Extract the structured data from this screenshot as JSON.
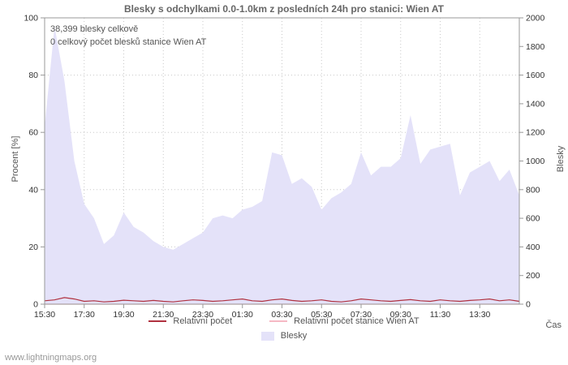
{
  "title": "Blesky s odchylkami 0.0-1.0km z posledních 24h pro stanici: Wien AT",
  "annotations": {
    "total": "38,399 blesky celkově",
    "station_total": "0 celkový počet blesků stanice Wien AT"
  },
  "footer": "www.lightningmaps.org",
  "colors": {
    "area": "#e4e2f9",
    "line_relative": "#b0313f",
    "line_station": "#f6b8c4",
    "grid": "#c8c8c8",
    "axis": "#999999",
    "title_text": "#666666"
  },
  "legend": {
    "items": [
      {
        "label": "Relativní počet",
        "type": "line",
        "color": "#b0313f"
      },
      {
        "label": "Relativní počet stanice Wien AT",
        "type": "line",
        "color": "#f6b8c4"
      },
      {
        "label": "Blesky",
        "type": "area",
        "color": "#e4e2f9"
      }
    ]
  },
  "chart_data": {
    "type": "area",
    "title": "Blesky s odchylkami 0.0-1.0km z posledních 24h pro stanici: Wien AT",
    "xlabel": "Čas",
    "x": [
      "15:30",
      "16:00",
      "16:30",
      "17:00",
      "17:30",
      "18:00",
      "18:30",
      "19:00",
      "19:30",
      "20:00",
      "20:30",
      "21:00",
      "21:30",
      "22:00",
      "22:30",
      "23:00",
      "23:30",
      "00:00",
      "00:30",
      "01:00",
      "01:30",
      "02:00",
      "02:30",
      "03:00",
      "03:30",
      "04:00",
      "04:30",
      "05:00",
      "05:30",
      "06:00",
      "06:30",
      "07:00",
      "07:30",
      "08:00",
      "08:30",
      "09:00",
      "09:30",
      "10:00",
      "10:30",
      "11:00",
      "11:30",
      "12:00",
      "12:30",
      "13:00",
      "13:30",
      "14:00",
      "14:30",
      "15:00",
      "15:30"
    ],
    "x_tick_labels": [
      "15:30",
      "17:30",
      "19:30",
      "21:30",
      "23:30",
      "01:30",
      "03:30",
      "05:30",
      "07:30",
      "09:30",
      "11:30",
      "13:30"
    ],
    "x_tick_every": 4,
    "left_axis": {
      "label": "Procent  [%]",
      "ticks": [
        0,
        20,
        40,
        60,
        80,
        100
      ],
      "range": [
        0,
        100
      ]
    },
    "right_axis": {
      "label": "Blesky",
      "ticks": [
        0,
        200,
        400,
        600,
        800,
        1000,
        1200,
        1400,
        1600,
        1800,
        2000
      ],
      "range": [
        0,
        2000
      ]
    },
    "grid": true,
    "legend_position": "bottom",
    "series": [
      {
        "name": "Blesky",
        "render": "area",
        "axis": "right",
        "color": "#e4e2f9",
        "values": [
          1240,
          1940,
          1560,
          1000,
          700,
          600,
          420,
          480,
          640,
          540,
          500,
          440,
          400,
          380,
          420,
          460,
          500,
          600,
          620,
          600,
          660,
          680,
          720,
          1060,
          1040,
          840,
          880,
          820,
          660,
          740,
          780,
          840,
          1060,
          900,
          960,
          960,
          1020,
          1320,
          980,
          1080,
          1100,
          1120,
          760,
          920,
          960,
          1000,
          860,
          940,
          760
        ]
      },
      {
        "name": "Relativní počet",
        "render": "line",
        "axis": "left",
        "color": "#b0313f",
        "values": [
          1.2,
          1.5,
          2.3,
          1.8,
          1.0,
          1.2,
          0.8,
          1.0,
          1.4,
          1.2,
          1.0,
          1.3,
          1.0,
          0.8,
          1.2,
          1.5,
          1.3,
          1.0,
          1.2,
          1.5,
          1.8,
          1.2,
          1.0,
          1.5,
          1.8,
          1.3,
          1.0,
          1.2,
          1.5,
          1.0,
          0.8,
          1.2,
          1.8,
          1.5,
          1.2,
          1.0,
          1.3,
          1.6,
          1.2,
          1.0,
          1.5,
          1.2,
          1.0,
          1.3,
          1.5,
          1.8,
          1.2,
          1.5,
          1.0
        ]
      },
      {
        "name": "Relativní počet stanice Wien AT",
        "render": "line",
        "axis": "left",
        "color": "#f6b8c4",
        "values": [
          0,
          0,
          0,
          0,
          0,
          0,
          0,
          0,
          0,
          0,
          0,
          0,
          0,
          0,
          0,
          0,
          0,
          0,
          0,
          0,
          0,
          0,
          0,
          0,
          0,
          0,
          0,
          0,
          0,
          0,
          0,
          0,
          0,
          0,
          0,
          0,
          0,
          0,
          0,
          0,
          0,
          0,
          0,
          0,
          0,
          0,
          0,
          0,
          0
        ]
      }
    ]
  }
}
